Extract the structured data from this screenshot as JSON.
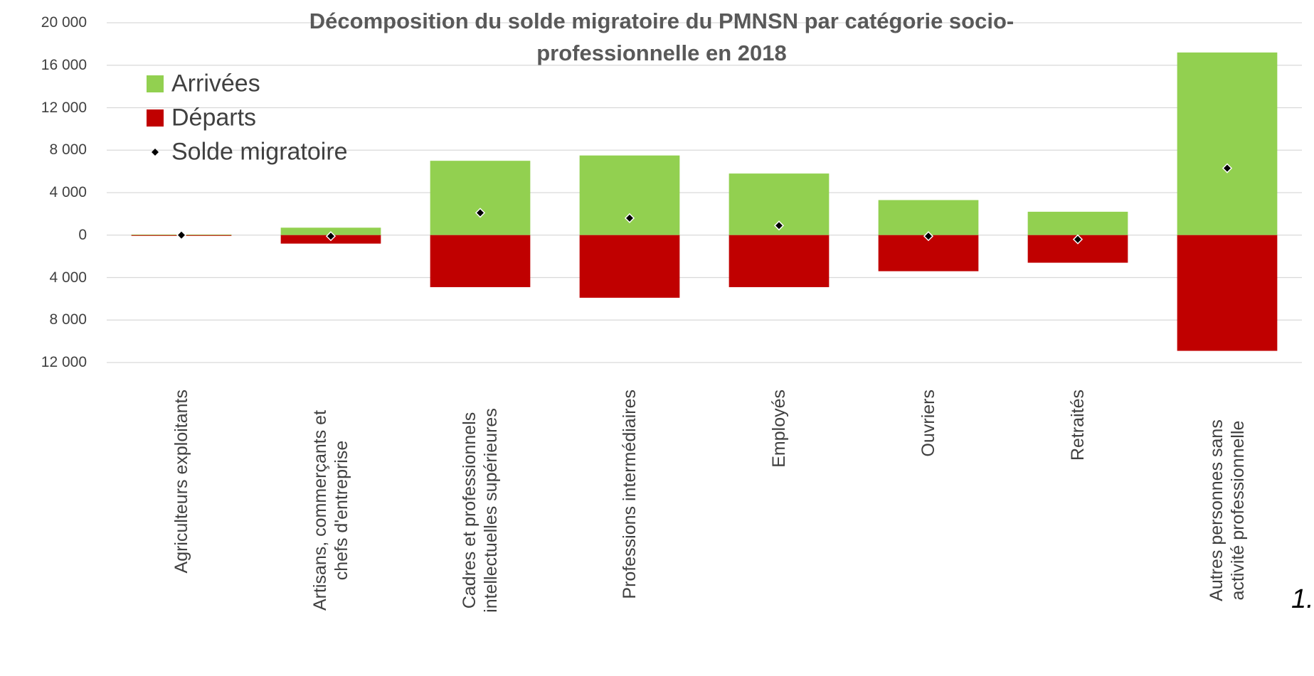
{
  "chart_data": {
    "type": "bar",
    "title": "Décomposition du solde migratoire du PMNSN par catégorie socio-professionnelle en 2018",
    "categories": [
      "Agriculteurs exploitants",
      "Artisans, commerçants et chefs d'entreprise",
      "Cadres et professionnels intellectuelles supérieures",
      "Professions intermédiaires",
      "Employés",
      "Ouvriers",
      "Retraités",
      "Autres personnes sans activité professionnelle"
    ],
    "series": [
      {
        "name": "Arrivées",
        "color": "#92d050",
        "kind": "bar",
        "values": [
          50,
          700,
          7000,
          7500,
          5800,
          3300,
          2200,
          17200
        ]
      },
      {
        "name": "Départs",
        "color": "#c00000",
        "kind": "bar",
        "values": [
          -50,
          -800,
          -4900,
          -5900,
          -4900,
          -3400,
          -2600,
          -10900
        ]
      },
      {
        "name": "Solde migratoire",
        "color": "#000000",
        "kind": "marker",
        "values": [
          0,
          -100,
          2100,
          1600,
          900,
          -100,
          -400,
          6300
        ]
      }
    ],
    "ylim": [
      -12000,
      20000
    ],
    "yticks": [
      {
        "value": -12000,
        "label": "12 000"
      },
      {
        "value": -8000,
        "label": "8 000"
      },
      {
        "value": -4000,
        "label": "4 000"
      },
      0,
      {
        "value": 4000,
        "label": "4 000"
      },
      {
        "value": 8000,
        "label": "8 000"
      },
      {
        "value": 12000,
        "label": "12 000"
      },
      {
        "value": 16000,
        "label": "16 000"
      },
      {
        "value": 20000,
        "label": "20 000"
      }
    ],
    "grid": true,
    "legend": "upper-left",
    "annotation": "1."
  }
}
